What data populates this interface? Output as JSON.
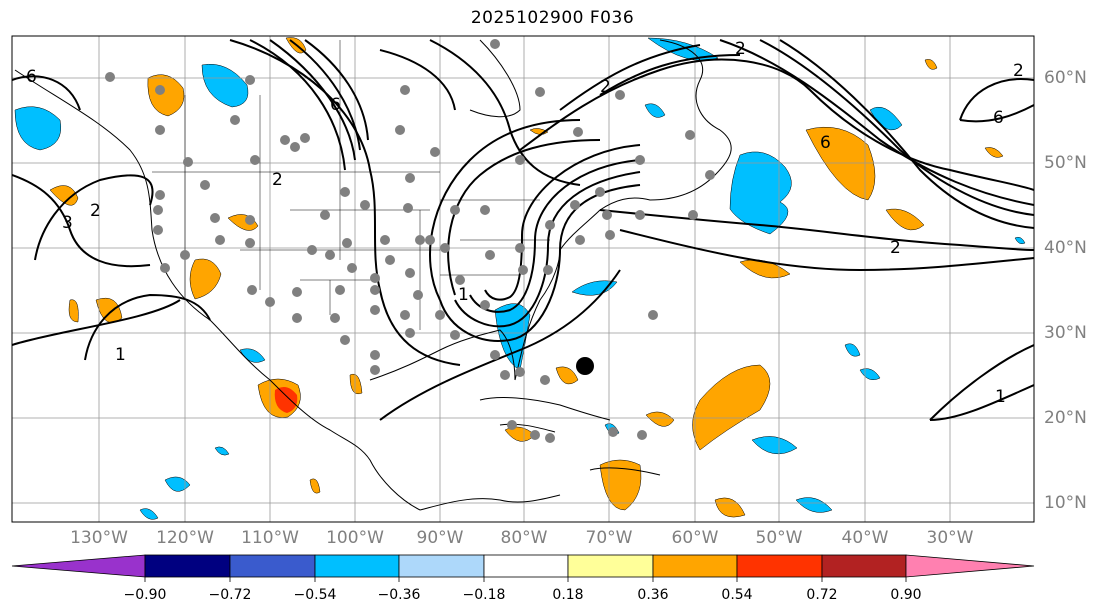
{
  "title": "2025102900 F036",
  "lon_labels": [
    "130°W",
    "120°W",
    "110°W",
    "100°W",
    "90°W",
    "80°W",
    "70°W",
    "60°W",
    "50°W",
    "40°W",
    "30°W"
  ],
  "lat_labels": [
    "60°N",
    "50°N",
    "40°N",
    "30°N",
    "20°N",
    "10°N"
  ],
  "contour_labels": [
    "6",
    "2",
    "3",
    "1",
    "2",
    "6",
    "2",
    "1",
    "2",
    "6",
    "2",
    "1",
    "6",
    "2"
  ],
  "colorbar": {
    "colors": [
      "#9932cc",
      "#000080",
      "#3a5bcd",
      "#00bfff",
      "#add8fa",
      "#ffffff",
      "#ffff99",
      "#ffa500",
      "#ff3300",
      "#b22222",
      "#ff80b0"
    ],
    "tick_labels": [
      "−0.90",
      "−0.72",
      "−0.54",
      "−0.36",
      "−0.18",
      "0.18",
      "0.36",
      "0.54",
      "0.72",
      "0.90"
    ]
  },
  "colors": {
    "positive": "#ffa500",
    "strong_positive": "#ff3300",
    "negative": "#00bfff",
    "station": "#808080",
    "grid": "#999999"
  }
}
